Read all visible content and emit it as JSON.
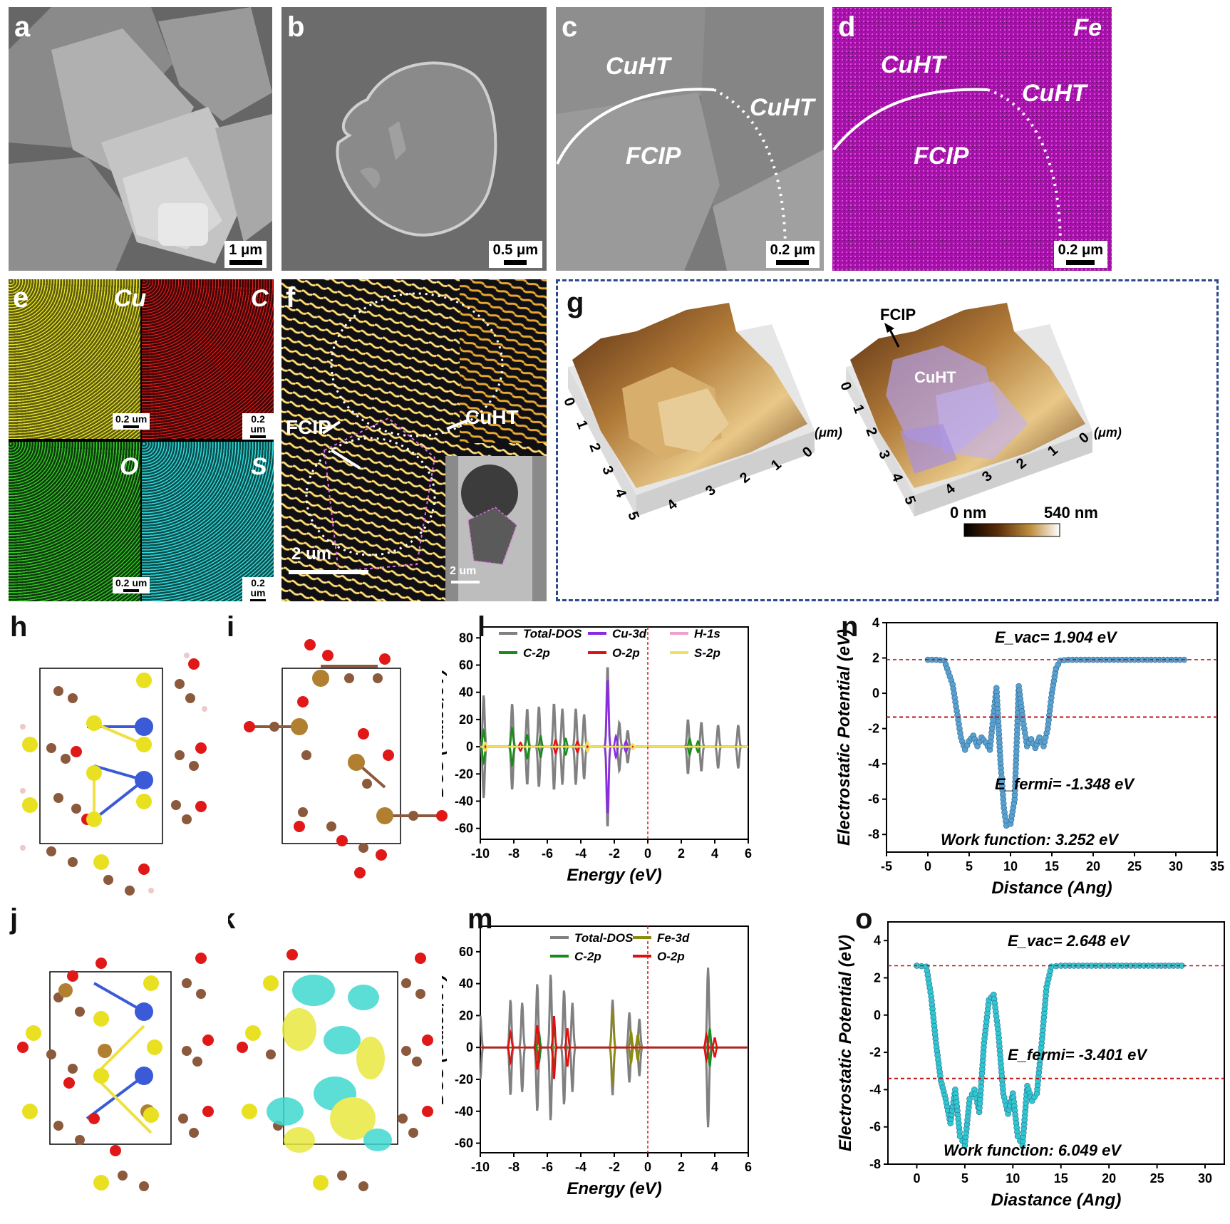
{
  "panels": {
    "a": {
      "label": "a",
      "scale": "1 μm"
    },
    "b": {
      "label": "b",
      "scale": "0.5 μm"
    },
    "c": {
      "label": "c",
      "scale": "0.2 μm",
      "ann": [
        "CuHT",
        "CuHT",
        "FCIP"
      ]
    },
    "d": {
      "label": "d",
      "scale": "0.2 μm",
      "element": "Fe",
      "ann": [
        "CuHT",
        "CuHT",
        "FCIP"
      ]
    },
    "e": {
      "label": "e",
      "maps": [
        {
          "element": "Cu",
          "scale": "0.2 um",
          "color": "#d8d020"
        },
        {
          "element": "C",
          "scale": "0.2 um",
          "color": "#c81818"
        },
        {
          "element": "O",
          "scale": "0.2 um",
          "color": "#2eaa22"
        },
        {
          "element": "S",
          "scale": "0.2 um",
          "color": "#20c8c8"
        }
      ]
    },
    "f": {
      "label": "f",
      "fcip": "FCIP",
      "cuht": "CuHT",
      "scale": "2 um",
      "inset_scale": "2 um"
    },
    "g": {
      "label": "g",
      "fcip": "FCIP",
      "cuht": "CuHT",
      "unit": "(μm)",
      "axis_ticks_left": [
        "0",
        "1",
        "2",
        "3",
        "4",
        "5"
      ],
      "axis_ticks_right": [
        "0",
        "1",
        "2",
        "3",
        "4"
      ],
      "colorbar_min": "0 nm",
      "colorbar_max": "540 nm"
    },
    "h": {
      "label": "h"
    },
    "i": {
      "label": "i"
    },
    "j": {
      "label": "j"
    },
    "k": {
      "label": "k"
    },
    "l": {
      "label": "l"
    },
    "m": {
      "label": "m"
    },
    "n": {
      "label": "n"
    },
    "o": {
      "label": "o"
    }
  },
  "chart_data": [
    {
      "id": "l",
      "type": "line",
      "xlabel": "Energy (eV)",
      "ylabel": "DOS (states/eV)",
      "xlim": [
        -10,
        6
      ],
      "ylim": [
        -68,
        88
      ],
      "xticks": [
        -10,
        -8,
        -6,
        -4,
        -2,
        0,
        2,
        4,
        6
      ],
      "yticks": [
        -60,
        -40,
        -20,
        0,
        20,
        40,
        60,
        80
      ],
      "fermi_level": 0,
      "legend": [
        {
          "name": "Total-DOS",
          "color": "#808080"
        },
        {
          "name": "Cu-3d",
          "color": "#8a2be2"
        },
        {
          "name": "H-1s",
          "color": "#f0a0d0"
        },
        {
          "name": "C-2p",
          "color": "#1a8a1a"
        },
        {
          "name": "O-2p",
          "color": "#e01010"
        },
        {
          "name": "S-2p",
          "color": "#f0e060"
        }
      ],
      "series": [
        {
          "name": "Total-DOS",
          "peaks": [
            [
              -9.8,
              38
            ],
            [
              -8.1,
              32
            ],
            [
              -7.2,
              28
            ],
            [
              -6.5,
              30
            ],
            [
              -5.6,
              32
            ],
            [
              -5.1,
              28
            ],
            [
              -4.3,
              28
            ],
            [
              -3.8,
              24
            ],
            [
              -2.4,
              60
            ],
            [
              -1.7,
              18
            ],
            [
              -1.2,
              12
            ],
            [
              2.4,
              20
            ],
            [
              3.2,
              18
            ],
            [
              4.2,
              16
            ],
            [
              5.4,
              16
            ]
          ]
        },
        {
          "name": "Cu-3d",
          "peaks": [
            [
              -2.4,
              50
            ],
            [
              -1.9,
              8
            ],
            [
              -1.3,
              4
            ]
          ]
        },
        {
          "name": "C-2p",
          "peaks": [
            [
              -9.8,
              12
            ],
            [
              -8.1,
              14
            ],
            [
              -7.2,
              9
            ],
            [
              -6.4,
              8
            ],
            [
              -4.9,
              6
            ],
            [
              2.5,
              6
            ],
            [
              3.0,
              4
            ]
          ]
        },
        {
          "name": "O-2p",
          "peaks": [
            [
              -7.6,
              3
            ],
            [
              -5.5,
              5
            ],
            [
              -4.2,
              4
            ]
          ]
        },
        {
          "name": "S-2p",
          "peaks": [
            [
              -9.7,
              3
            ],
            [
              -3.6,
              4
            ],
            [
              -0.9,
              2
            ]
          ]
        }
      ]
    },
    {
      "id": "m",
      "type": "line",
      "xlabel": "Energy (eV)",
      "ylabel": "DOS (States/eV)",
      "xlim": [
        -10,
        6
      ],
      "ylim": [
        -66,
        76
      ],
      "xticks": [
        -10,
        -8,
        -6,
        -4,
        -2,
        0,
        2,
        4,
        6
      ],
      "yticks": [
        -60,
        -40,
        -20,
        0,
        20,
        40,
        60
      ],
      "fermi_level": 0,
      "legend": [
        {
          "name": "Total-DOS",
          "color": "#808080"
        },
        {
          "name": "Fe-3d",
          "color": "#8a8a10"
        },
        {
          "name": "C-2p",
          "color": "#1a8a1a"
        },
        {
          "name": "O-2p",
          "color": "#e01010"
        }
      ],
      "series": [
        {
          "name": "Total-DOS",
          "peaks": [
            [
              -10,
              20
            ],
            [
              -8.2,
              30
            ],
            [
              -7.5,
              28
            ],
            [
              -6.6,
              40
            ],
            [
              -5.8,
              46
            ],
            [
              -5.0,
              36
            ],
            [
              -4.5,
              28
            ],
            [
              -2.1,
              30
            ],
            [
              -1.1,
              22
            ],
            [
              -0.5,
              18
            ],
            [
              3.6,
              50
            ]
          ]
        },
        {
          "name": "Fe-3d",
          "peaks": [
            [
              -2.1,
              24
            ],
            [
              -1.0,
              10
            ],
            [
              -0.6,
              8
            ]
          ]
        },
        {
          "name": "C-2p",
          "peaks": [
            [
              -6.5,
              10
            ],
            [
              -5.6,
              12
            ],
            [
              3.7,
              12
            ]
          ]
        },
        {
          "name": "O-2p",
          "peaks": [
            [
              -8.2,
              10
            ],
            [
              -6.6,
              14
            ],
            [
              -5.6,
              20
            ],
            [
              -4.8,
              12
            ],
            [
              3.5,
              8
            ],
            [
              4.0,
              6
            ]
          ]
        }
      ]
    },
    {
      "id": "n",
      "type": "scatter",
      "xlabel": "Distance (Ang)",
      "ylabel": "Electrostatic Potential (eV)",
      "xlim": [
        -5,
        35
      ],
      "ylim": [
        -9,
        4
      ],
      "xticks": [
        -5,
        0,
        5,
        10,
        15,
        20,
        25,
        30,
        35
      ],
      "yticks": [
        -8,
        -6,
        -4,
        -2,
        0,
        2,
        4
      ],
      "color": "#5aa0d0",
      "evac_line": 1.904,
      "efermi_line": -1.348,
      "annotations": {
        "evac": "E_vac= 1.904 eV",
        "efermi": "E_fermi= -1.348 eV",
        "work_function": "Work function: 3.252 eV"
      },
      "points": [
        [
          0,
          1.9
        ],
        [
          1,
          1.9
        ],
        [
          2,
          1.85
        ],
        [
          3,
          0.5
        ],
        [
          3.5,
          -1
        ],
        [
          4,
          -2.5
        ],
        [
          4.5,
          -3.2
        ],
        [
          5,
          -2.7
        ],
        [
          5.5,
          -2.4
        ],
        [
          6,
          -3
        ],
        [
          6.5,
          -2.5
        ],
        [
          7,
          -2.8
        ],
        [
          7.5,
          -3.2
        ],
        [
          8,
          -1
        ],
        [
          8.3,
          0.3
        ],
        [
          8.8,
          -4
        ],
        [
          9.2,
          -6.5
        ],
        [
          9.5,
          -7.5
        ],
        [
          10,
          -7.4
        ],
        [
          10.5,
          -6
        ],
        [
          11,
          0.4
        ],
        [
          11.5,
          -1.5
        ],
        [
          12,
          -3
        ],
        [
          12.5,
          -2.6
        ],
        [
          13,
          -3.1
        ],
        [
          13.5,
          -2.5
        ],
        [
          14,
          -3
        ],
        [
          14.5,
          -2
        ],
        [
          15,
          0
        ],
        [
          15.5,
          1.4
        ],
        [
          16,
          1.85
        ],
        [
          17,
          1.9
        ],
        [
          20,
          1.9
        ],
        [
          25,
          1.9
        ],
        [
          31.5,
          1.9
        ]
      ]
    },
    {
      "id": "o",
      "type": "scatter",
      "xlabel": "Diastance (Ang)",
      "ylabel": "Electrostatic Potential (eV)",
      "xlim": [
        -3,
        32
      ],
      "ylim": [
        -8,
        5
      ],
      "xticks": [
        0,
        5,
        10,
        15,
        20,
        25,
        30
      ],
      "yticks": [
        -8,
        -6,
        -4,
        -2,
        0,
        2,
        4
      ],
      "color": "#30c8d0",
      "evac_line": 2.648,
      "efermi_line": -3.401,
      "annotations": {
        "evac": "E_vac= 2.648 eV",
        "efermi": "E_fermi= -3.401 eV",
        "work_function": "Work function: 6.049 eV"
      },
      "points": [
        [
          0,
          2.65
        ],
        [
          1,
          2.6
        ],
        [
          1.5,
          1
        ],
        [
          2,
          -1.5
        ],
        [
          2.5,
          -3.5
        ],
        [
          3,
          -4.5
        ],
        [
          3.5,
          -5.8
        ],
        [
          4,
          -4
        ],
        [
          4.5,
          -6.5
        ],
        [
          5,
          -7
        ],
        [
          5.5,
          -4.5
        ],
        [
          6,
          -4
        ],
        [
          6.5,
          -5.2
        ],
        [
          7,
          -1.5
        ],
        [
          7.5,
          0.8
        ],
        [
          8,
          1.1
        ],
        [
          8.5,
          -1
        ],
        [
          9,
          -4.2
        ],
        [
          9.5,
          -5.3
        ],
        [
          10,
          -4.2
        ],
        [
          10.5,
          -6.5
        ],
        [
          11,
          -7
        ],
        [
          11.5,
          -3.8
        ],
        [
          12,
          -4.6
        ],
        [
          12.5,
          -4.2
        ],
        [
          13,
          -1.5
        ],
        [
          13.5,
          1.5
        ],
        [
          14,
          2.6
        ],
        [
          15,
          2.65
        ],
        [
          20,
          2.65
        ],
        [
          25,
          2.65
        ],
        [
          28,
          2.65
        ]
      ]
    }
  ]
}
